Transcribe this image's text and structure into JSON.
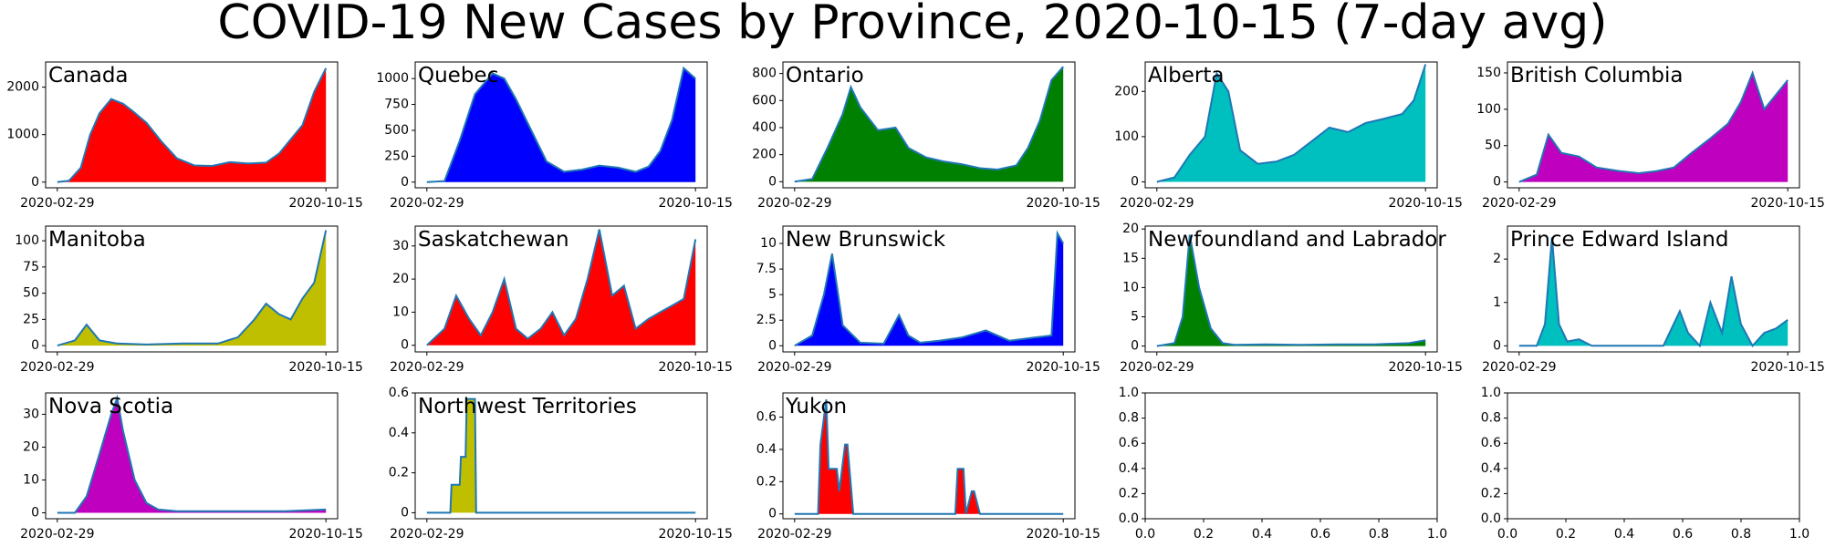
{
  "chart_data": {
    "type": "area",
    "title": "COVID-19 New Cases by Province, 2020-10-15 (7-day avg)",
    "x_start": "2020-02-29",
    "x_end": "2020-10-15",
    "x_ticks": [
      "2020-02-29",
      "2020-10-15"
    ],
    "line_color": "#1f77b4",
    "panels": [
      {
        "name": "Canada",
        "color": "#ff0000",
        "yticks": [
          0,
          1000,
          2000
        ],
        "ylim": [
          -120,
          2530
        ],
        "x": [
          "2020-02-29",
          "2020-03-10",
          "2020-03-20",
          "2020-03-28",
          "2020-04-05",
          "2020-04-15",
          "2020-04-25",
          "2020-05-03",
          "2020-05-15",
          "2020-05-28",
          "2020-06-10",
          "2020-06-25",
          "2020-07-10",
          "2020-07-25",
          "2020-08-10",
          "2020-08-25",
          "2020-09-05",
          "2020-09-15",
          "2020-09-25",
          "2020-10-05",
          "2020-10-15"
        ],
        "values": [
          0,
          30,
          300,
          1000,
          1450,
          1750,
          1650,
          1500,
          1250,
          850,
          500,
          350,
          340,
          420,
          390,
          410,
          600,
          900,
          1200,
          1900,
          2400
        ]
      },
      {
        "name": "Quebec",
        "color": "#0000ff",
        "yticks": [
          0,
          250,
          500,
          750,
          1000
        ],
        "ylim": [
          -55,
          1160
        ],
        "x": [
          "2020-02-29",
          "2020-03-15",
          "2020-03-28",
          "2020-04-10",
          "2020-04-25",
          "2020-05-05",
          "2020-05-15",
          "2020-05-28",
          "2020-06-10",
          "2020-06-25",
          "2020-07-10",
          "2020-07-25",
          "2020-08-10",
          "2020-08-25",
          "2020-09-05",
          "2020-09-15",
          "2020-09-25",
          "2020-10-05",
          "2020-10-15"
        ],
        "values": [
          0,
          10,
          400,
          850,
          1050,
          1000,
          800,
          500,
          200,
          100,
          120,
          160,
          140,
          100,
          150,
          300,
          600,
          1100,
          1000
        ]
      },
      {
        "name": "Ontario",
        "color": "#008000",
        "yticks": [
          0,
          200,
          400,
          600,
          800
        ],
        "ylim": [
          -45,
          885
        ],
        "x": [
          "2020-02-29",
          "2020-03-15",
          "2020-03-28",
          "2020-04-10",
          "2020-04-17",
          "2020-04-25",
          "2020-05-10",
          "2020-05-25",
          "2020-06-05",
          "2020-06-20",
          "2020-07-05",
          "2020-07-20",
          "2020-08-05",
          "2020-08-20",
          "2020-09-05",
          "2020-09-15",
          "2020-09-25",
          "2020-10-05",
          "2020-10-15"
        ],
        "values": [
          0,
          20,
          250,
          500,
          700,
          550,
          380,
          400,
          250,
          180,
          150,
          130,
          100,
          90,
          120,
          250,
          450,
          750,
          850
        ]
      },
      {
        "name": "Alberta",
        "color": "#00bfbf",
        "yticks": [
          0,
          100,
          200
        ],
        "ylim": [
          -13,
          265
        ],
        "x": [
          "2020-02-29",
          "2020-03-15",
          "2020-03-28",
          "2020-04-10",
          "2020-04-20",
          "2020-04-30",
          "2020-05-10",
          "2020-05-25",
          "2020-06-10",
          "2020-06-25",
          "2020-07-10",
          "2020-07-25",
          "2020-08-10",
          "2020-08-25",
          "2020-09-10",
          "2020-09-25",
          "2020-10-05",
          "2020-10-15"
        ],
        "values": [
          0,
          10,
          60,
          100,
          240,
          200,
          70,
          40,
          45,
          60,
          90,
          120,
          110,
          130,
          140,
          150,
          180,
          260
        ]
      },
      {
        "name": "British Columbia",
        "color": "#bf00bf",
        "yticks": [
          0,
          50,
          100,
          150
        ],
        "ylim": [
          -8,
          165
        ],
        "x": [
          "2020-02-29",
          "2020-03-15",
          "2020-03-25",
          "2020-04-05",
          "2020-04-20",
          "2020-05-05",
          "2020-05-25",
          "2020-06-10",
          "2020-06-25",
          "2020-07-10",
          "2020-07-25",
          "2020-08-10",
          "2020-08-25",
          "2020-09-05",
          "2020-09-15",
          "2020-09-25",
          "2020-10-05",
          "2020-10-15"
        ],
        "values": [
          0,
          10,
          65,
          40,
          35,
          20,
          15,
          12,
          15,
          20,
          40,
          60,
          80,
          110,
          150,
          100,
          120,
          140
        ]
      },
      {
        "name": "Manitoba",
        "color": "#bfbf00",
        "yticks": [
          0,
          25,
          50,
          75,
          100
        ],
        "ylim": [
          -6,
          114
        ],
        "x": [
          "2020-02-29",
          "2020-03-15",
          "2020-03-25",
          "2020-04-05",
          "2020-04-20",
          "2020-05-15",
          "2020-06-15",
          "2020-07-15",
          "2020-08-01",
          "2020-08-15",
          "2020-08-25",
          "2020-09-05",
          "2020-09-15",
          "2020-09-25",
          "2020-10-05",
          "2020-10-15"
        ],
        "values": [
          0,
          5,
          20,
          5,
          2,
          1,
          2,
          2,
          8,
          25,
          40,
          30,
          25,
          45,
          60,
          110
        ]
      },
      {
        "name": "Saskatchewan",
        "color": "#ff0000",
        "yticks": [
          0,
          10,
          20,
          30
        ],
        "ylim": [
          -2,
          36
        ],
        "x": [
          "2020-02-29",
          "2020-03-15",
          "2020-03-25",
          "2020-04-05",
          "2020-04-15",
          "2020-04-25",
          "2020-05-05",
          "2020-05-15",
          "2020-05-25",
          "2020-06-05",
          "2020-06-15",
          "2020-06-25",
          "2020-07-05",
          "2020-07-15",
          "2020-07-25",
          "2020-08-05",
          "2020-08-15",
          "2020-08-25",
          "2020-09-05",
          "2020-09-15",
          "2020-09-25",
          "2020-10-05",
          "2020-10-15"
        ],
        "values": [
          0,
          5,
          15,
          8,
          3,
          10,
          20,
          5,
          2,
          5,
          10,
          3,
          8,
          20,
          35,
          15,
          18,
          5,
          8,
          10,
          12,
          14,
          32
        ]
      },
      {
        "name": "New Brunswick",
        "color": "#0000ff",
        "yticks": [
          0.0,
          2.5,
          5.0,
          7.5,
          10.0
        ],
        "ylim": [
          -0.6,
          11.7
        ],
        "x": [
          "2020-02-29",
          "2020-03-15",
          "2020-03-25",
          "2020-04-01",
          "2020-04-10",
          "2020-04-25",
          "2020-05-15",
          "2020-05-28",
          "2020-06-05",
          "2020-06-15",
          "2020-07-01",
          "2020-07-20",
          "2020-08-10",
          "2020-08-30",
          "2020-09-20",
          "2020-10-05",
          "2020-10-10",
          "2020-10-15"
        ],
        "values": [
          0,
          1,
          5,
          9,
          2,
          0.3,
          0.2,
          3,
          1,
          0.3,
          0.5,
          0.8,
          1.5,
          0.5,
          0.8,
          1,
          11,
          10
        ]
      },
      {
        "name": "Newfoundland and Labrador",
        "color": "#008000",
        "yticks": [
          0,
          5,
          10,
          15,
          20
        ],
        "ylim": [
          -1,
          20.5
        ],
        "x": [
          "2020-02-29",
          "2020-03-15",
          "2020-03-22",
          "2020-03-28",
          "2020-04-05",
          "2020-04-15",
          "2020-04-25",
          "2020-05-05",
          "2020-06-01",
          "2020-07-01",
          "2020-08-01",
          "2020-09-01",
          "2020-10-01",
          "2020-10-15"
        ],
        "values": [
          0,
          0.5,
          5,
          19,
          10,
          3,
          0.5,
          0.2,
          0.3,
          0.2,
          0.3,
          0.3,
          0.5,
          1
        ]
      },
      {
        "name": "Prince Edward Island",
        "color": "#00bfbf",
        "yticks": [
          0,
          1,
          2
        ],
        "ylim": [
          -0.14,
          2.76
        ],
        "x": [
          "2020-02-29",
          "2020-03-15",
          "2020-03-22",
          "2020-03-28",
          "2020-04-03",
          "2020-04-10",
          "2020-04-20",
          "2020-05-01",
          "2020-06-01",
          "2020-07-01",
          "2020-07-15",
          "2020-07-22",
          "2020-08-01",
          "2020-08-10",
          "2020-08-20",
          "2020-08-28",
          "2020-09-05",
          "2020-09-15",
          "2020-09-25",
          "2020-10-05",
          "2020-10-15"
        ],
        "values": [
          0,
          0,
          0.5,
          2.5,
          0.5,
          0.1,
          0.15,
          0,
          0,
          0,
          0.8,
          0.3,
          0,
          1,
          0.3,
          1.6,
          0.5,
          0,
          0.3,
          0.4,
          0.6
        ]
      },
      {
        "name": "Nova Scotia",
        "color": "#bf00bf",
        "yticks": [
          0,
          10,
          20,
          30
        ],
        "ylim": [
          -1.8,
          36.5
        ],
        "x": [
          "2020-02-29",
          "2020-03-15",
          "2020-03-25",
          "2020-04-05",
          "2020-04-15",
          "2020-04-20",
          "2020-04-25",
          "2020-05-05",
          "2020-05-15",
          "2020-05-25",
          "2020-06-10",
          "2020-07-10",
          "2020-08-10",
          "2020-09-10",
          "2020-10-15"
        ],
        "values": [
          0,
          0,
          5,
          18,
          30,
          35,
          25,
          10,
          3,
          1,
          0.5,
          0.5,
          0.5,
          0.5,
          1
        ]
      },
      {
        "name": "Northwest Territories",
        "color": "#bfbf00",
        "yticks": [
          0.0,
          0.2,
          0.4,
          0.6
        ],
        "ylim": [
          -0.03,
          0.6
        ],
        "x": [
          "2020-02-29",
          "2020-03-20",
          "2020-03-21",
          "2020-03-28",
          "2020-03-29",
          "2020-04-02",
          "2020-04-03",
          "2020-04-10",
          "2020-04-11",
          "2020-10-15"
        ],
        "values": [
          0,
          0,
          0.14,
          0.14,
          0.28,
          0.28,
          0.57,
          0.57,
          0,
          0
        ]
      },
      {
        "name": "Yukon",
        "color": "#ff0000",
        "yticks": [
          0.0,
          0.2,
          0.4,
          0.6
        ],
        "ylim": [
          -0.03,
          0.75
        ],
        "x": [
          "2020-02-29",
          "2020-03-20",
          "2020-03-22",
          "2020-03-27",
          "2020-03-29",
          "2020-04-05",
          "2020-04-07",
          "2020-04-12",
          "2020-04-14",
          "2020-04-19",
          "2020-04-21",
          "2020-07-15",
          "2020-07-17",
          "2020-07-22",
          "2020-07-24",
          "2020-07-29",
          "2020-07-31",
          "2020-08-05",
          "2020-08-07",
          "2020-10-15"
        ],
        "values": [
          0,
          0,
          0.43,
          0.71,
          0.28,
          0.28,
          0.14,
          0.43,
          0.43,
          0,
          0,
          0,
          0.28,
          0.28,
          0,
          0.14,
          0.14,
          0,
          0,
          0
        ]
      }
    ],
    "empty_panels": [
      {
        "yticks": [
          "0.0",
          "0.2",
          "0.4",
          "0.6",
          "0.8",
          "1.0"
        ],
        "xticks": [
          "0.0",
          "0.2",
          "0.4",
          "0.6",
          "0.8",
          "1.0"
        ]
      },
      {
        "yticks": [
          "0.0",
          "0.2",
          "0.4",
          "0.6",
          "0.8",
          "1.0"
        ],
        "xticks": [
          "0.0",
          "0.2",
          "0.4",
          "0.6",
          "0.8",
          "1.0"
        ]
      }
    ]
  }
}
